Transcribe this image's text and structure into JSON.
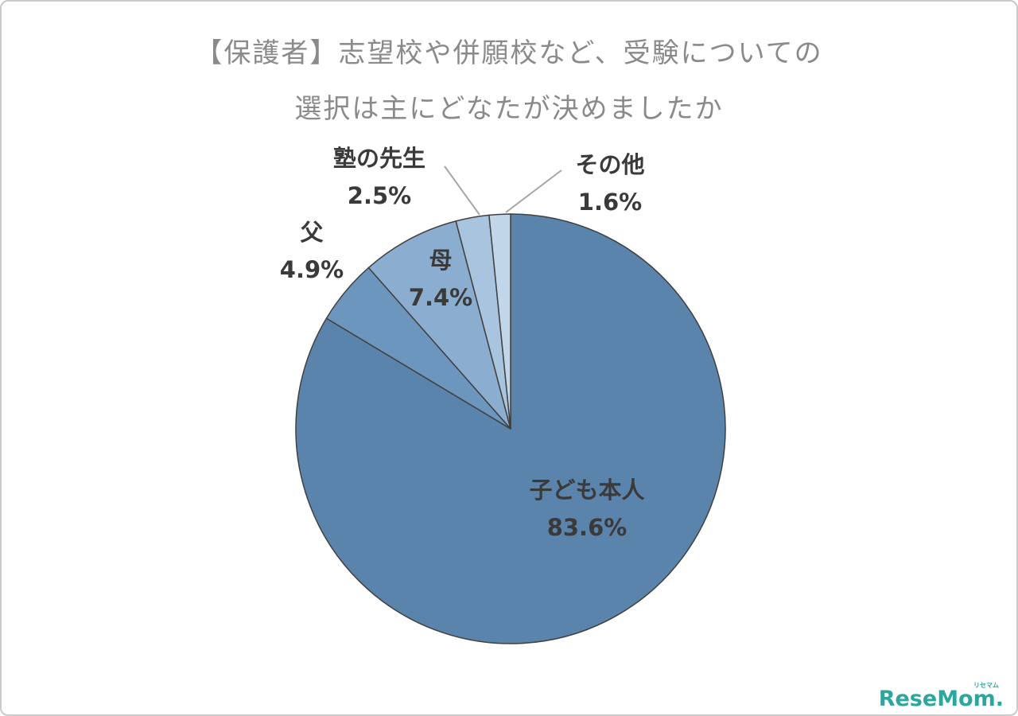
{
  "title": {
    "line1": "【保護者】志望校や併願校など、受験についての",
    "line2": "選択は主にどなたが決めましたか"
  },
  "chart_data": {
    "type": "pie",
    "title": "【保護者】志望校や併願校など、受験についての選択は主にどなたが決めましたか",
    "categories": [
      "子ども本人",
      "父",
      "母",
      "塾の先生",
      "その他"
    ],
    "values": [
      83.6,
      4.9,
      7.4,
      2.5,
      1.6
    ],
    "value_labels": [
      "83.6%",
      "4.9%",
      "7.4%",
      "2.5%",
      "1.6%"
    ],
    "unit": "%",
    "colors": [
      "#5B84AC",
      "#6C96BE",
      "#8BADD0",
      "#A9C4DE",
      "#C2D6EA"
    ],
    "slice_stroke": "#404040",
    "leader_line_color": "#A6A6A6",
    "start_angle_deg": 0,
    "direction": "clockwise",
    "legend_position": "none",
    "label_placement": {
      "子ども本人": "inside",
      "母": "inside-top",
      "父": "outside",
      "塾の先生": "outside-leader",
      "その他": "outside-leader"
    }
  },
  "logo": {
    "text": "ReseMom.",
    "ruby": "リセマム",
    "color": "#2BA79E"
  }
}
